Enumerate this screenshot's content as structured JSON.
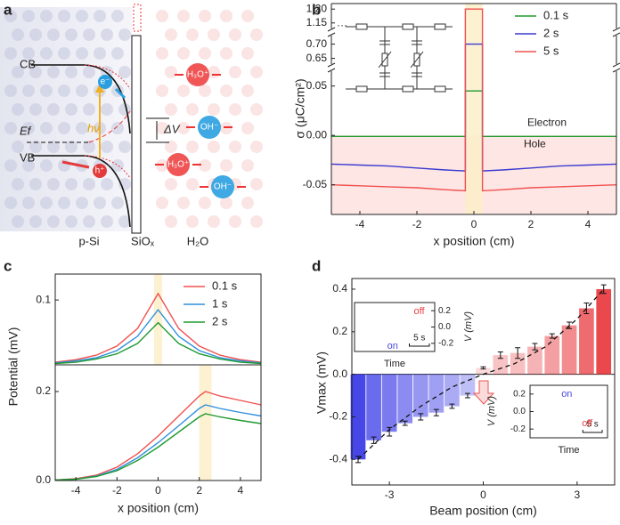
{
  "panel_labels": [
    "a",
    "b",
    "c",
    "d"
  ],
  "diagram": {
    "labels": [
      "CB",
      "VB",
      "Ef",
      "hν",
      "e⁻",
      "h⁺",
      "ΔV",
      "H₃O⁺",
      "OH⁻",
      "H₃O⁺",
      "OH⁻",
      "p-Si",
      "SiOₓ",
      "H₂O"
    ]
  },
  "chart_data": [
    {
      "type": "line",
      "xlabel": "x position (cm)",
      "ylabel": "σ (μC/cm²)",
      "x": [
        -5,
        -4,
        -3,
        -2,
        -1,
        -0.3,
        -0.3,
        0.3,
        0.3,
        1,
        2,
        3,
        4,
        5
      ],
      "series": [
        {
          "name": "0.1 s",
          "color": "#1f9a2f",
          "values": [
            -0.001,
            -0.001,
            -0.001,
            -0.001,
            -0.001,
            -0.001,
            0.045,
            0.045,
            -0.001,
            -0.001,
            -0.001,
            -0.001,
            -0.001,
            -0.001
          ]
        },
        {
          "name": "2 s",
          "color": "#3a3ad0",
          "values": [
            -0.029,
            -0.03,
            -0.031,
            -0.033,
            -0.035,
            -0.036,
            0.7,
            0.7,
            -0.036,
            -0.035,
            -0.033,
            -0.031,
            -0.03,
            -0.029
          ]
        },
        {
          "name": "5 s",
          "color": "#f0504f",
          "values": [
            -0.05,
            -0.051,
            -0.052,
            -0.053,
            -0.055,
            -0.056,
            1.2,
            1.2,
            -0.056,
            -0.055,
            -0.053,
            -0.052,
            -0.051,
            -0.05
          ]
        }
      ],
      "xlim": [
        -5,
        5
      ],
      "xticks": [
        -4,
        -2,
        0,
        2,
        4
      ],
      "axis_segments": [
        [
          -0.08,
          0.065
        ],
        [
          0.63,
          0.73
        ],
        [
          1.13,
          1.22
        ]
      ],
      "yticks": [
        -0.05,
        {
          "value": 0,
          "label": "0.00"
        },
        0.05,
        0.65,
        {
          "value": 0.7,
          "label": "0.70"
        },
        1.15,
        {
          "value": 1.2,
          "label": "1.20"
        }
      ],
      "highlight_x": [
        -0.3,
        0.3
      ],
      "shaded_y": [
        -0.08,
        0
      ],
      "legend": "upper right",
      "annotations": [
        "Electron",
        "Hole"
      ]
    },
    {
      "type": "line",
      "ylabel": "Potential (mV)",
      "x": [
        -5,
        -4,
        -3,
        -2,
        -1,
        0,
        1,
        2,
        3,
        4,
        5
      ],
      "series": [
        {
          "name": "0.1 s",
          "color": "#f0504f",
          "values": [
            0.004,
            0.008,
            0.015,
            0.029,
            0.056,
            0.11,
            0.056,
            0.029,
            0.015,
            0.008,
            0.004
          ]
        },
        {
          "name": "1 s",
          "color": "#2f8fdc",
          "values": [
            0.003,
            0.006,
            0.011,
            0.022,
            0.044,
            0.085,
            0.044,
            0.022,
            0.011,
            0.006,
            0.003
          ]
        },
        {
          "name": "2 s",
          "color": "#1f9a2f",
          "values": [
            0.002,
            0.004,
            0.009,
            0.017,
            0.033,
            0.065,
            0.033,
            0.017,
            0.009,
            0.004,
            0.002
          ]
        }
      ],
      "xlim": [
        -5,
        5
      ],
      "ylim": [
        0,
        0.14
      ],
      "yticks": [
        0.1
      ],
      "highlight_x": [
        -0.2,
        0.2
      ],
      "legend": "upper right"
    },
    {
      "type": "line",
      "xlabel": "x position (cm)",
      "x": [
        -5,
        -4,
        -3,
        -2,
        -1,
        0,
        1,
        2,
        2.3,
        3,
        4,
        5
      ],
      "series": [
        {
          "color": "#f0504f",
          "values": [
            0.001,
            0.004,
            0.012,
            0.03,
            0.06,
            0.1,
            0.145,
            0.19,
            0.2,
            0.19,
            0.18,
            0.17
          ]
        },
        {
          "color": "#2f8fdc",
          "values": [
            0.001,
            0.003,
            0.01,
            0.025,
            0.051,
            0.085,
            0.123,
            0.162,
            0.17,
            0.162,
            0.153,
            0.145
          ]
        },
        {
          "color": "#1f9a2f",
          "values": [
            0.001,
            0.003,
            0.009,
            0.022,
            0.045,
            0.075,
            0.109,
            0.143,
            0.15,
            0.143,
            0.135,
            0.128
          ]
        }
      ],
      "xlim": [
        -5,
        5
      ],
      "ylim": [
        0,
        0.26
      ],
      "xticks": [
        -4,
        -2,
        0,
        2,
        4
      ],
      "yticks": [
        {
          "value": 0,
          "label": "0.0"
        },
        0.2
      ],
      "highlight_x": [
        2.0,
        2.6
      ]
    },
    {
      "type": "bar",
      "xlabel": "Beam position (cm)",
      "ylabel": "Vmax (mV)",
      "x": [
        -4,
        -3.5,
        -3,
        -2.5,
        -2,
        -1.5,
        -1,
        -0.5,
        0,
        0.55,
        1.1,
        1.65,
        2.2,
        2.75,
        3.3,
        3.85
      ],
      "values": [
        -0.4,
        -0.31,
        -0.27,
        -0.23,
        -0.2,
        -0.18,
        -0.15,
        -0.1,
        0.03,
        0.09,
        0.1,
        0.13,
        0.18,
        0.23,
        0.31,
        0.4
      ],
      "errors": [
        0.015,
        0.015,
        0.02,
        0.01,
        0.015,
        0.015,
        0.01,
        0.01,
        0.005,
        0.015,
        0.025,
        0.015,
        0.01,
        0.015,
        0.025,
        0.02
      ],
      "color_negative": "#3333e6",
      "color_positive": "#e8343a",
      "fit": {
        "x": [
          -4,
          -3,
          -2,
          -1,
          0,
          1,
          2,
          3,
          3.85
        ],
        "values": [
          -0.4,
          -0.26,
          -0.15,
          -0.06,
          0,
          0.05,
          0.13,
          0.26,
          0.4
        ]
      },
      "xlim": [
        -4.2,
        4.2
      ],
      "ylim": [
        -0.52,
        0.45
      ],
      "xticks": [
        -3,
        0,
        3
      ],
      "yticks": [
        -0.4,
        -0.2,
        {
          "value": 0,
          "label": "0.0"
        },
        0.2,
        0.4
      ]
    },
    {
      "type": "line",
      "xlabel": "Time",
      "ylabel": "V (mV)",
      "x": [
        0,
        1,
        2,
        3,
        4,
        5,
        6,
        7,
        8,
        9,
        10,
        11,
        12,
        13,
        14,
        15,
        16,
        17,
        18,
        19,
        20
      ],
      "series": [
        {
          "color": "#222222",
          "values": [
            0.05,
            0.05,
            0.04,
            0.05,
            0.05,
            0.05,
            -0.2,
            -0.1,
            -0.05,
            0,
            0.03,
            0.06,
            0.08,
            0.1,
            0.2,
            0.12,
            0.08,
            0.06,
            0.05,
            0.05,
            0.04
          ]
        }
      ],
      "xlim": [
        0,
        20
      ],
      "ylim": [
        -0.3,
        0.3
      ],
      "yticks": [
        -0.2,
        {
          "value": 0,
          "label": "0.0"
        },
        0.2
      ],
      "highlight_x": [
        6,
        13
      ],
      "scale_bar": {
        "value": 5,
        "label": "5 s"
      },
      "annotations": [
        "on",
        "off"
      ]
    },
    {
      "type": "line",
      "xlabel": "Time",
      "ylabel": "V (mV)",
      "x": [
        0,
        1,
        2,
        3,
        4,
        5,
        6,
        7,
        8,
        9,
        10,
        11,
        12,
        13,
        14,
        15,
        16,
        17,
        18,
        19,
        20
      ],
      "series": [
        {
          "color": "#222222",
          "values": [
            0,
            0.01,
            -0.01,
            0,
            0,
            0.01,
            -0.01,
            0,
            0.02,
            0,
            -0.01,
            0,
            0.01,
            -0.02,
            0,
            0,
            0.01,
            -0.01,
            0,
            -0.02,
            0
          ]
        }
      ],
      "xlim": [
        0,
        20
      ],
      "ylim": [
        -0.3,
        0.3
      ],
      "yticks": [
        -0.2,
        {
          "value": 0,
          "label": "0.0"
        },
        0.2
      ],
      "highlight_x": [
        7,
        12
      ],
      "scale_bar": {
        "value": 5,
        "label": "5 s"
      },
      "annotations": [
        "on",
        "off"
      ]
    }
  ]
}
